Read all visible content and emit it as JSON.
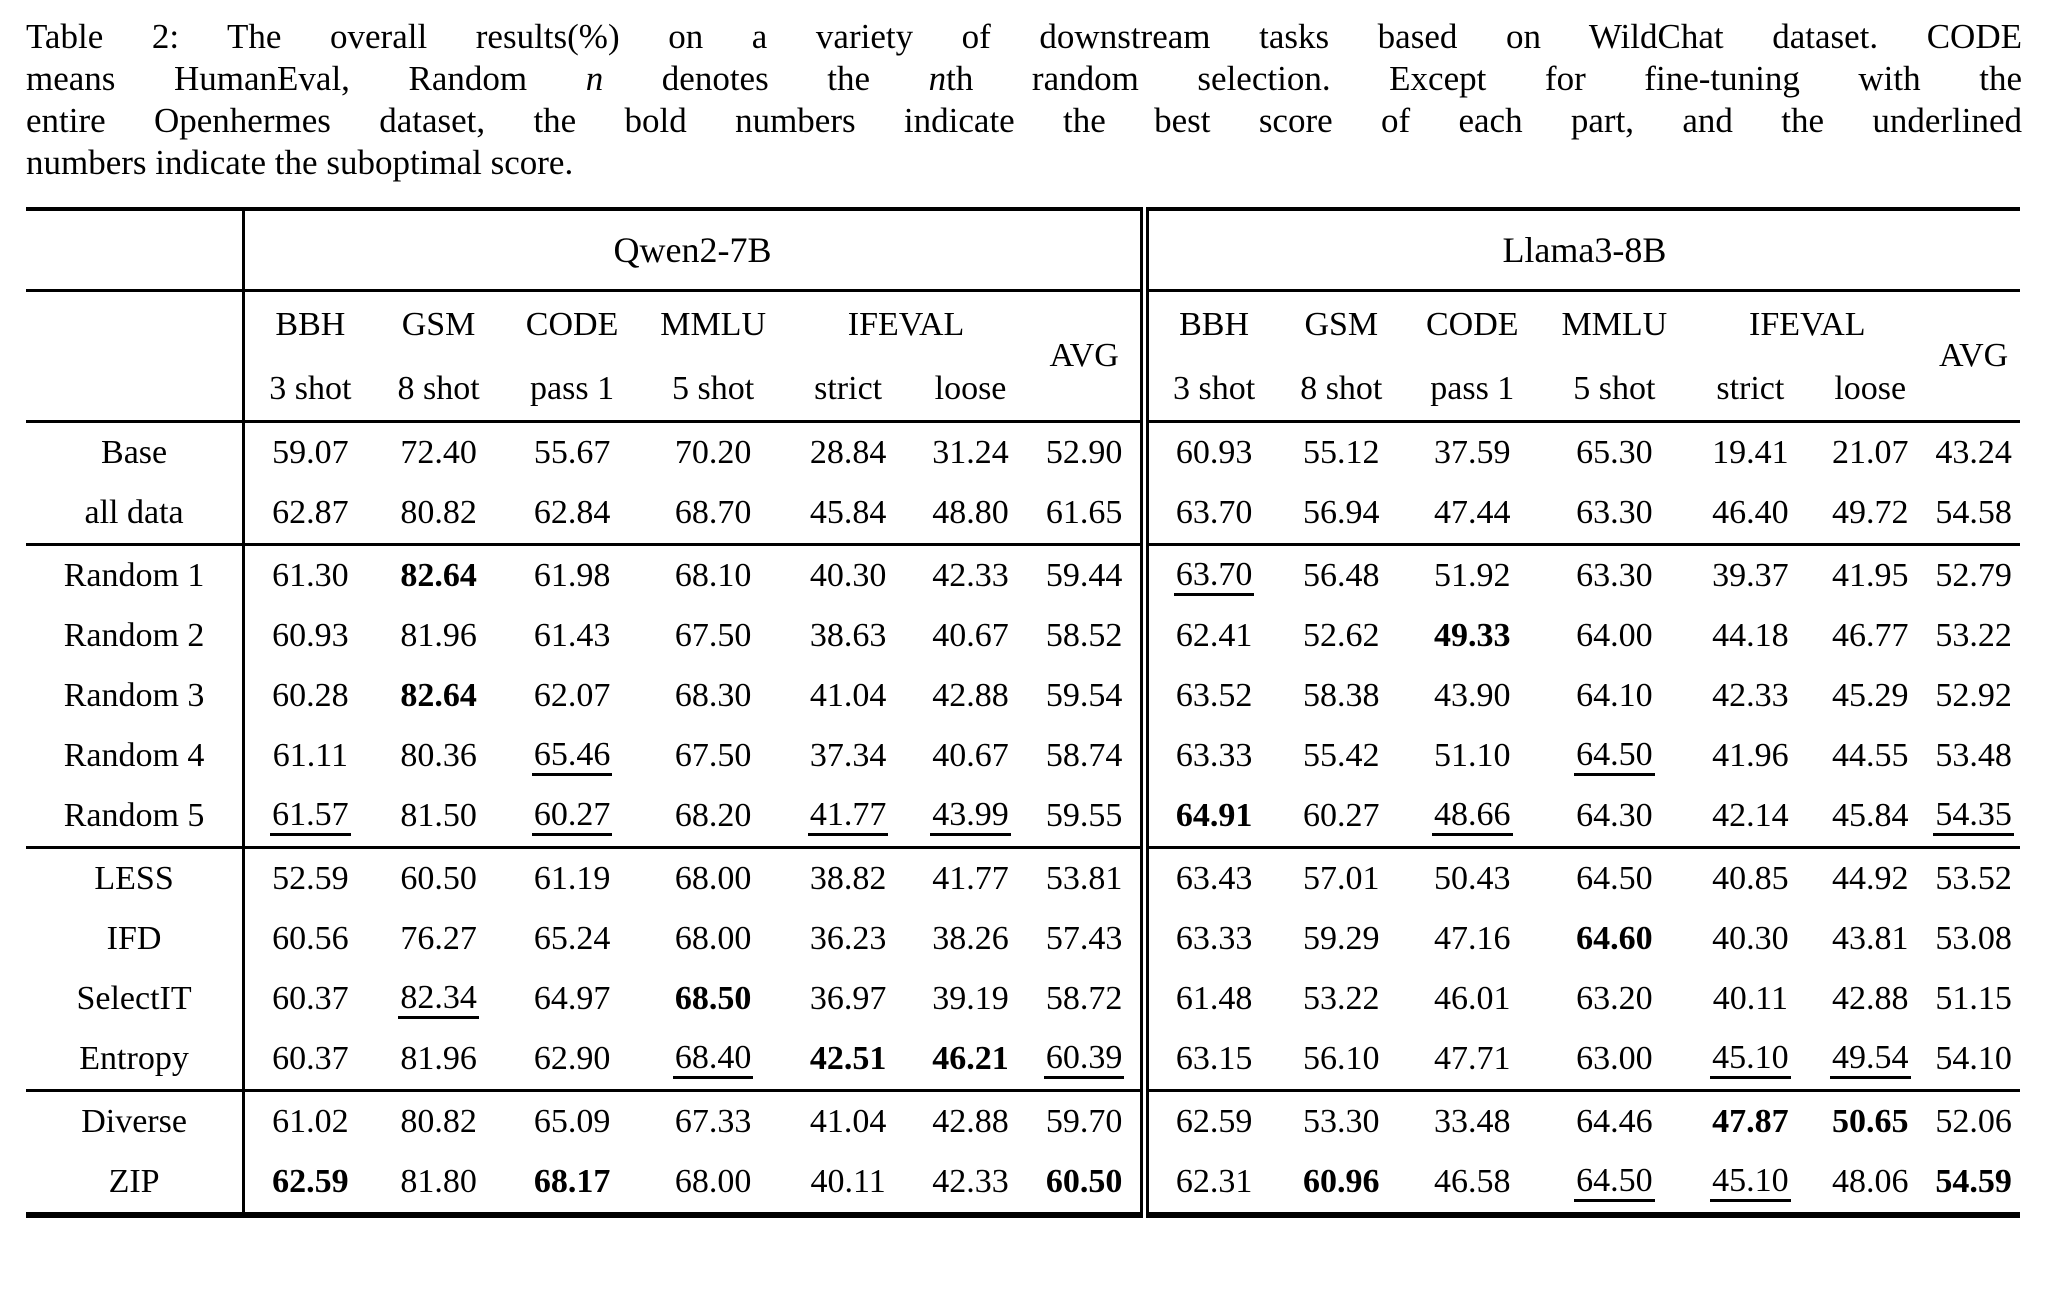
{
  "caption": {
    "lines": [
      [
        {
          "text": "Table 2: The overall results(%) on a variety of downstream tasks based on WildChat dataset. CODE"
        }
      ],
      [
        {
          "text": "means HumanEval, Random "
        },
        {
          "text": "n",
          "italic": true
        },
        {
          "text": " denotes the "
        },
        {
          "text": "n",
          "italic": true
        },
        {
          "text": "th random selection.  Except for fine-tuning with the"
        }
      ],
      [
        {
          "text": "entire Openhermes dataset, the bold numbers indicate the best score of each part, and the underlined"
        }
      ],
      [
        {
          "text": "numbers indicate the suboptimal score."
        }
      ]
    ]
  },
  "table": {
    "models": [
      "Qwen2-7B",
      "Llama3-8B"
    ],
    "metrics": [
      {
        "name": "BBH",
        "setting": "3 shot"
      },
      {
        "name": "GSM",
        "setting": "8 shot"
      },
      {
        "name": "CODE",
        "setting": "pass 1"
      },
      {
        "name": "MMLU",
        "setting": "5 shot"
      },
      {
        "name": "IFEVAL",
        "settings": [
          "strict",
          "loose"
        ]
      }
    ],
    "avg_label": "AVG",
    "sections": [
      {
        "name": "baseline",
        "rows": [
          {
            "label": "Base",
            "cells": [
              "59.07",
              "72.40",
              "55.67",
              "70.20",
              "28.84",
              "31.24",
              "52.90",
              "60.93",
              "55.12",
              "37.59",
              "65.30",
              "19.41",
              "21.07",
              "43.24"
            ]
          },
          {
            "label": "all data",
            "cells": [
              "62.87",
              "80.82",
              "62.84",
              "68.70",
              "45.84",
              "48.80",
              "61.65",
              "63.70",
              "56.94",
              "47.44",
              "63.30",
              "46.40",
              "49.72",
              "54.58"
            ]
          }
        ]
      },
      {
        "name": "random",
        "rows": [
          {
            "label": "Random 1",
            "cells": [
              "61.30",
              {
                "v": "82.64",
                "b": true
              },
              "61.98",
              "68.10",
              "40.30",
              "42.33",
              "59.44",
              {
                "v": "63.70",
                "u": true
              },
              "56.48",
              "51.92",
              "63.30",
              "39.37",
              "41.95",
              "52.79"
            ]
          },
          {
            "label": "Random 2",
            "cells": [
              "60.93",
              "81.96",
              "61.43",
              "67.50",
              "38.63",
              "40.67",
              "58.52",
              "62.41",
              "52.62",
              {
                "v": "49.33",
                "b": true
              },
              "64.00",
              "44.18",
              "46.77",
              "53.22"
            ]
          },
          {
            "label": "Random 3",
            "cells": [
              "60.28",
              {
                "v": "82.64",
                "b": true
              },
              "62.07",
              "68.30",
              "41.04",
              "42.88",
              "59.54",
              "63.52",
              "58.38",
              "43.90",
              "64.10",
              "42.33",
              "45.29",
              "52.92"
            ]
          },
          {
            "label": "Random 4",
            "cells": [
              "61.11",
              "80.36",
              {
                "v": "65.46",
                "u": true
              },
              "67.50",
              "37.34",
              "40.67",
              "58.74",
              "63.33",
              "55.42",
              "51.10",
              {
                "v": "64.50",
                "u": true
              },
              "41.96",
              "44.55",
              "53.48"
            ]
          },
          {
            "label": "Random 5",
            "cells": [
              {
                "v": "61.57",
                "u": true
              },
              "81.50",
              {
                "v": "60.27",
                "u": true
              },
              "68.20",
              {
                "v": "41.77",
                "u": true
              },
              {
                "v": "43.99",
                "u": true
              },
              "59.55",
              {
                "v": "64.91",
                "b": true
              },
              "60.27",
              {
                "v": "48.66",
                "u": true
              },
              "64.30",
              "42.14",
              "45.84",
              {
                "v": "54.35",
                "u": true
              }
            ]
          }
        ]
      },
      {
        "name": "selection-methods",
        "rows": [
          {
            "label": "LESS",
            "cells": [
              "52.59",
              "60.50",
              "61.19",
              "68.00",
              "38.82",
              "41.77",
              "53.81",
              "63.43",
              "57.01",
              "50.43",
              "64.50",
              "40.85",
              "44.92",
              "53.52"
            ]
          },
          {
            "label": "IFD",
            "cells": [
              "60.56",
              "76.27",
              "65.24",
              "68.00",
              "36.23",
              "38.26",
              "57.43",
              "63.33",
              "59.29",
              "47.16",
              {
                "v": "64.60",
                "b": true
              },
              "40.30",
              "43.81",
              "53.08"
            ]
          },
          {
            "label": "SelectIT",
            "cells": [
              "60.37",
              {
                "v": "82.34",
                "u": true
              },
              "64.97",
              {
                "v": "68.50",
                "b": true
              },
              "36.97",
              "39.19",
              "58.72",
              "61.48",
              "53.22",
              "46.01",
              "63.20",
              "40.11",
              "42.88",
              "51.15"
            ]
          },
          {
            "label": "Entropy",
            "cells": [
              "60.37",
              "81.96",
              "62.90",
              {
                "v": "68.40",
                "u": true
              },
              {
                "v": "42.51",
                "b": true
              },
              {
                "v": "46.21",
                "b": true
              },
              {
                "v": "60.39",
                "u": true
              },
              "63.15",
              "56.10",
              "47.71",
              "63.00",
              {
                "v": "45.10",
                "u": true
              },
              {
                "v": "49.54",
                "u": true
              },
              "54.10"
            ]
          }
        ]
      },
      {
        "name": "ours",
        "rows": [
          {
            "label": "Diverse",
            "cells": [
              "61.02",
              "80.82",
              "65.09",
              "67.33",
              "41.04",
              "42.88",
              "59.70",
              "62.59",
              "53.30",
              "33.48",
              "64.46",
              {
                "v": "47.87",
                "b": true
              },
              {
                "v": "50.65",
                "b": true
              },
              "52.06"
            ]
          },
          {
            "label": "ZIP",
            "cells": [
              {
                "v": "62.59",
                "b": true
              },
              "81.80",
              {
                "v": "68.17",
                "b": true
              },
              "68.00",
              "40.11",
              "42.33",
              {
                "v": "60.50",
                "b": true
              },
              "62.31",
              {
                "v": "60.96",
                "b": true
              },
              "46.58",
              {
                "v": "64.50",
                "u": true
              },
              {
                "v": "45.10",
                "u": true
              },
              "48.06",
              {
                "v": "54.59",
                "b": true
              }
            ]
          }
        ]
      }
    ]
  }
}
